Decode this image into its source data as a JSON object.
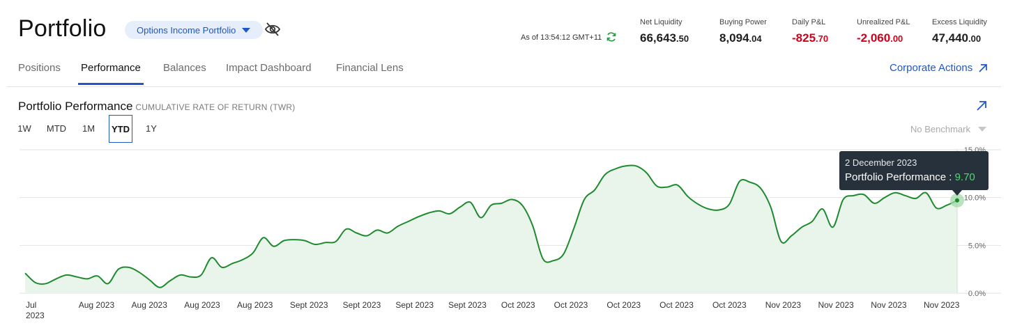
{
  "header": {
    "title": "Portfolio",
    "portfolio_selector": "Options Income Portfolio",
    "hide_icon": "eye-off-icon",
    "as_of": "As of 13:54:12 GMT+11",
    "refresh_icon": "refresh-icon"
  },
  "metrics": [
    {
      "label": "Net Liquidity",
      "int": "66,643",
      "dec": ".50",
      "negative": false
    },
    {
      "label": "Buying Power",
      "int": "8,094",
      "dec": ".04",
      "negative": false
    },
    {
      "label": "Daily P&L",
      "int": "-825",
      "dec": ".70",
      "negative": true
    },
    {
      "label": "Unrealized P&L",
      "int": "-2,060",
      "dec": ".00",
      "negative": true
    },
    {
      "label": "Excess Liquidity",
      "int": "47,440",
      "dec": ".00",
      "negative": false
    }
  ],
  "tabs": [
    "Positions",
    "Performance",
    "Balances",
    "Impact Dashboard",
    "Financial Lens"
  ],
  "active_tab": "Performance",
  "corporate_actions": "Corporate Actions",
  "performance": {
    "title": "Portfolio Performance",
    "subtitle": "CUMULATIVE RATE OF RETURN (TWR)",
    "ranges": [
      "1W",
      "MTD",
      "1M",
      "YTD",
      "1Y"
    ],
    "active_range": "YTD",
    "benchmark": "No Benchmark"
  },
  "tooltip": {
    "date": "2 December 2023",
    "label": "Portfolio Performance : ",
    "value": "9.70"
  },
  "colors": {
    "accent": "#1e57c9",
    "negative": "#d0021b",
    "line": "#1e8a2e",
    "area": "#e9f4ea",
    "tooltip_bg": "#26313b",
    "tooltip_value": "#4ddb6a"
  },
  "chart_data": {
    "type": "area",
    "series": [
      {
        "values": [
          2.1,
          1.1,
          1.0,
          1.5,
          1.9,
          1.7,
          1.5,
          1.8,
          1.0,
          2.5,
          2.7,
          2.2,
          1.4,
          0.6,
          1.3,
          1.9,
          1.7,
          1.9,
          3.7,
          2.7,
          3.1,
          3.5,
          4.2,
          5.8,
          4.9,
          5.5,
          5.6,
          5.5,
          5.1,
          5.3,
          5.4,
          6.7,
          6.3,
          6.0,
          6.6,
          6.3,
          7.0,
          7.5,
          8.0,
          8.4,
          8.6,
          8.3,
          9.0,
          9.5,
          7.9,
          9.2,
          9.4,
          9.8,
          9.2,
          7.1,
          3.6,
          3.4,
          4.1,
          6.8,
          9.8,
          10.8,
          12.4,
          13.0,
          13.3,
          13.3,
          12.6,
          11.2,
          11.1,
          11.3,
          10.1,
          9.3,
          8.8,
          8.7,
          9.3,
          11.7,
          11.6,
          11.0,
          9.0,
          5.4,
          6.0,
          6.9,
          7.5,
          8.8,
          6.9,
          9.8,
          10.2,
          10.3,
          9.4,
          10.0,
          10.5,
          10.2,
          9.9,
          10.5,
          8.9,
          9.2,
          9.7
        ]
      }
    ],
    "x_tick_labels": [
      "Jul 2023",
      "Aug 2023",
      "Aug 2023",
      "Aug 2023",
      "Aug 2023",
      "Sept 2023",
      "Sept 2023",
      "Sept 2023",
      "Sept 2023",
      "Oct 2023",
      "Oct 2023",
      "Oct 2023",
      "Oct 2023",
      "Oct 2023",
      "Nov 2023",
      "Nov 2023",
      "Nov 2023",
      "Nov 2023"
    ],
    "y_ticks": [
      "0.0%",
      "5.0%",
      "10.0%",
      "15.0%"
    ],
    "y_tick_values": [
      0,
      5,
      10,
      15
    ],
    "ylim": [
      0,
      15
    ],
    "grid": true,
    "highlight": {
      "label": "2 December 2023",
      "value": 9.7
    }
  }
}
